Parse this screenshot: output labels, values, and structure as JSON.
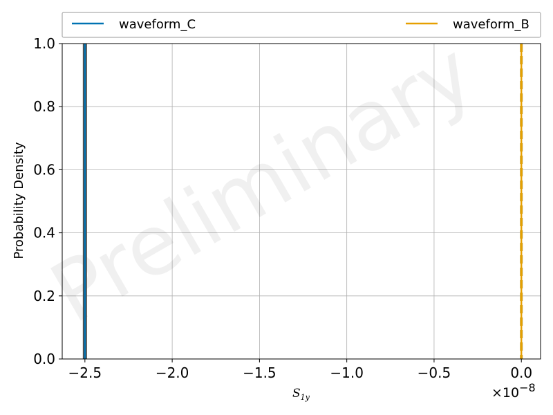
{
  "chart_data": {
    "type": "line",
    "title": "",
    "xlabel_symbol": "S",
    "xlabel_subscript": "1y",
    "ylabel": "Probability Density",
    "xlim": [
      -2.63e-08,
      1.1e-09
    ],
    "ylim": [
      0,
      1.0
    ],
    "x_offset_text_base": "×10",
    "x_offset_text_exp": "−8",
    "x_ticks": [
      -2.5,
      -2.0,
      -1.5,
      -1.0,
      -0.5,
      0.0
    ],
    "x_tick_labels": [
      "−2.5",
      "−2.0",
      "−1.5",
      "−1.0",
      "−0.5",
      "0.0"
    ],
    "y_ticks": [
      0.0,
      0.2,
      0.4,
      0.6,
      0.8,
      1.0
    ],
    "y_tick_labels": [
      "0.0",
      "0.2",
      "0.4",
      "0.6",
      "0.8",
      "1.0"
    ],
    "grid": true,
    "legend_placement": "top, spanning full width",
    "series": [
      {
        "name": "waveform_C",
        "color": "#0072b2",
        "x": [
          -2.5e-08,
          -2.5e-08
        ],
        "y": [
          0,
          1.0
        ],
        "style": "solid"
      },
      {
        "name": "waveform_B",
        "color": "#e69f00",
        "x": [
          0,
          0
        ],
        "y": [
          0,
          1.0
        ],
        "style": "solid"
      }
    ],
    "injection_lines": [
      {
        "x": -2.5e-08,
        "color": "#505050",
        "style": "solid"
      },
      {
        "x": 0.0,
        "color": "#c9a227",
        "style": "dashed"
      }
    ],
    "watermark": "Preliminary"
  }
}
